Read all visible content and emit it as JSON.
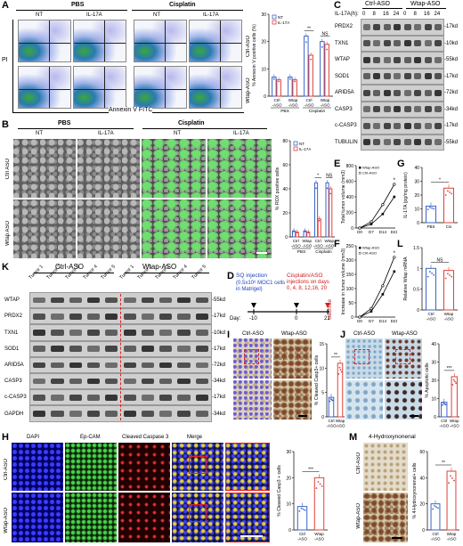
{
  "panel_letters": {
    "A": "A",
    "B": "B",
    "C": "C",
    "D": "D",
    "E": "E",
    "F": "F",
    "G": "G",
    "H": "H",
    "I": "I",
    "J": "J",
    "K": "K",
    "L": "L",
    "M": "M"
  },
  "panelA": {
    "treatments": [
      "PBS",
      "Cisplatin"
    ],
    "conditions": [
      "NT",
      "IL-17A",
      "NT",
      "IL-17A"
    ],
    "row_labels": [
      "Ctrl-ASO",
      "Wtap-ASO"
    ],
    "y_axis": "PI",
    "x_axis": "Annexin V FITC"
  },
  "panelB": {
    "treatments": [
      "PBS",
      "Cisplatin"
    ],
    "conditions": [
      "NT",
      "IL-17A",
      "NT",
      "IL-17A"
    ],
    "row_labels": [
      "Ctrl ASO",
      "Wtap ASO"
    ]
  },
  "panelC": {
    "groups": [
      "Ctrl-ASO",
      "Wtap-ASO"
    ],
    "time_header": "IL-17A(h):",
    "timepoints": [
      "0",
      "8",
      "16",
      "24",
      "0",
      "8",
      "16",
      "24"
    ],
    "proteins": [
      "PRDX2",
      "TXN1",
      "WTAP",
      "SOD1",
      "ARID5A",
      "CASP3",
      "c-CASP3",
      "TUBULIN"
    ],
    "sizes": [
      "-17kd",
      "-10kd",
      "-55kd",
      "-17kd",
      "-72kd",
      "-34kd",
      "-17kd",
      "-55kd"
    ]
  },
  "panelD": {
    "step1": "SQ injection",
    "step1_detail1": "(0.5x10⁶ MOC1 cells",
    "step1_detail2": "in Matrigel)",
    "step2": "Cisplatin/ASO",
    "step2_detail1": "injections on days",
    "step2_detail2": "0, 4, 8, 12,16, 20",
    "step3": "Sacrifice",
    "day_label": "Day:",
    "days": [
      "-10",
      "0",
      "21"
    ]
  },
  "panelK": {
    "groups": [
      "Ctrl-ASO",
      "Wtap-ASO"
    ],
    "tumors": [
      "Tumor 1",
      "Tumor 2",
      "Tumor 3",
      "Tumor 4",
      "Tumor 5",
      "Tumor 1",
      "Tumor 2",
      "Tumor 3",
      "Tumor 4",
      "Tumor 5"
    ],
    "proteins": [
      "WTAP",
      "PRDX2",
      "TXN1",
      "SOD1",
      "ARID5A",
      "CASP3",
      "c-CASP3",
      "GAPDH"
    ],
    "sizes": [
      "-55kd",
      "-17kd",
      "-10kd",
      "-17kd",
      "-72kd",
      "-34kd",
      "-17kd",
      "-34kd"
    ]
  },
  "panelH": {
    "channels": [
      "DAPI",
      "Ep-CAM",
      "Cleaved Caspase 3",
      "Merge"
    ],
    "row_labels": [
      "Ctrl-ASO",
      "Wtap-ASO"
    ]
  },
  "panelI": {
    "col_labels": [
      "Ctrl-ASO",
      "Wtap-ASO"
    ]
  },
  "panelJ": {
    "col_labels": [
      "Ctrl-ASO",
      "Wtap-ASO"
    ]
  },
  "panelM": {
    "title": "4-Hydroxynonenal",
    "row_labels": [
      "Ctrl-ASO",
      "Wtap-ASO"
    ]
  },
  "colors": {
    "nt": "#3a64c8",
    "il17": "#e0403a",
    "black": "#000000"
  },
  "chart_data": [
    {
      "id": "A",
      "type": "bar",
      "ylabel": "% Annexin V positive cells (%)",
      "ylim": [
        0,
        30
      ],
      "yticks": [
        0,
        10,
        20,
        30
      ],
      "categories": [
        "Ctrl-ASO",
        "Wtap-ASO",
        "Ctrl-ASO",
        "Wtap-ASO"
      ],
      "tick_labels": [
        "Ctrl\n-ASO",
        "Wtap\n-ASO",
        "Ctrl\n-ASO",
        "Wtap\n-ASO"
      ],
      "group_labels": [
        "PBS",
        "Cisplatin"
      ],
      "legend": [
        "NT",
        "IL-17A"
      ],
      "series": [
        {
          "name": "NT",
          "values": [
            7,
            7,
            22,
            20
          ]
        },
        {
          "name": "IL-17A",
          "values": [
            6,
            6,
            15,
            19
          ]
        }
      ],
      "annotations": [
        "**",
        "NS"
      ]
    },
    {
      "id": "B",
      "type": "bar",
      "ylabel": "% ROX positive cells",
      "ylim": [
        0,
        80
      ],
      "yticks": [
        0,
        20,
        40,
        60,
        80
      ],
      "categories": [
        "Ctrl-ASO",
        "Wtap-ASO",
        "Ctrl-ASO",
        "Wtap-ASO"
      ],
      "tick_labels": [
        "Ctrl\n-ASO",
        "Wtap\n-ASO",
        "Ctrl\n-ASO",
        "Wtap\n-ASO"
      ],
      "group_labels": [
        "PBS",
        "Cisplatin"
      ],
      "legend": [
        "NT",
        "IL-17A"
      ],
      "series": [
        {
          "name": "NT",
          "values": [
            5,
            5,
            45,
            45
          ]
        },
        {
          "name": "IL-17A",
          "values": [
            4,
            4,
            15,
            40
          ]
        }
      ],
      "annotations": [
        "*",
        "NS"
      ]
    },
    {
      "id": "E",
      "type": "line",
      "ylabel": "Total tumor volume (mm3)",
      "ylim": [
        0,
        800
      ],
      "yticks": [
        0,
        200,
        400,
        600,
        800
      ],
      "x": [
        "D0",
        "D7",
        "D14",
        "D21"
      ],
      "legend": [
        "Wtap-ASO",
        "Ctrl-ASO"
      ],
      "series": [
        {
          "name": "Wtap-ASO",
          "values": [
            0,
            50,
            180,
            400
          ]
        },
        {
          "name": "Ctrl-ASO",
          "values": [
            0,
            80,
            300,
            560
          ]
        }
      ],
      "annotations": [
        "*"
      ]
    },
    {
      "id": "F",
      "type": "line",
      "ylabel": "Increase in tumor volume (mm3)",
      "ylim": [
        0,
        250
      ],
      "yticks": [
        0,
        50,
        100,
        150,
        200,
        250
      ],
      "x": [
        "D0",
        "D7",
        "D14",
        "D21"
      ],
      "legend": [
        "Wtap-ASO",
        "Ctrl-ASO"
      ],
      "series": [
        {
          "name": "Wtap-ASO",
          "values": [
            0,
            20,
            80,
            160
          ]
        },
        {
          "name": "Ctrl-ASO",
          "values": [
            0,
            30,
            110,
            210
          ]
        }
      ],
      "annotations": [
        "*"
      ]
    },
    {
      "id": "G",
      "type": "bar",
      "ylabel": "IL-17A (pg/mg protein)",
      "ylim": [
        0,
        40
      ],
      "yticks": [
        0,
        10,
        20,
        30,
        40
      ],
      "categories": [
        "PBS",
        "Cis"
      ],
      "values": [
        12,
        25
      ],
      "annotations": [
        "*"
      ]
    },
    {
      "id": "L",
      "type": "bar",
      "ylabel": "Relative Wtap mRNA",
      "ylim": [
        0,
        1.5
      ],
      "yticks": [
        0,
        0.5,
        1.0,
        1.5
      ],
      "categories": [
        "Ctrl ASO",
        "Wtap ASO"
      ],
      "tick_labels": [
        "Ctrl\n-ASO",
        "Wtap\n-ASO"
      ],
      "values": [
        1.0,
        0.95
      ],
      "annotations": [
        "NS"
      ]
    },
    {
      "id": "I",
      "type": "bar",
      "ylabel": "% Cleaved Casp3+ cells",
      "ylim": [
        0,
        15
      ],
      "yticks": [
        0,
        5,
        10,
        15
      ],
      "categories": [
        "Ctrl-ASO",
        "Wtap-ASO"
      ],
      "tick_labels": [
        "Ctrl\n-ASO",
        "Wtap\n-ASO"
      ],
      "values": [
        4,
        11
      ],
      "annotations": [
        "**"
      ]
    },
    {
      "id": "J",
      "type": "bar",
      "ylabel": "% Apoptotic cells",
      "ylim": [
        0,
        40
      ],
      "yticks": [
        0,
        10,
        20,
        30,
        40
      ],
      "categories": [
        "Ctrl-ASO",
        "Wtap-ASO"
      ],
      "tick_labels": [
        "Ctrl\n-ASO",
        "Wtap\n-ASO"
      ],
      "values": [
        8,
        22
      ],
      "annotations": [
        "***"
      ]
    },
    {
      "id": "H",
      "type": "bar",
      "ylabel": "% Cleaved Casp3 + cells",
      "ylim": [
        0,
        30
      ],
      "yticks": [
        0,
        10,
        20,
        30
      ],
      "categories": [
        "Ctrl-ASO",
        "Wtap-ASO"
      ],
      "tick_labels": [
        "Ctrl\n-ASO",
        "Wtap\n-ASO"
      ],
      "values": [
        9,
        20
      ],
      "annotations": [
        "***"
      ]
    },
    {
      "id": "M",
      "type": "bar",
      "ylabel": "% 4-Hydroxynonenal+ cells",
      "ylim": [
        0,
        60
      ],
      "yticks": [
        0,
        20,
        40,
        60
      ],
      "categories": [
        "Ctrl-ASO",
        "Wtap-ASO"
      ],
      "tick_labels": [
        "Ctrl\n-ASO",
        "Wtap\n-ASO"
      ],
      "values": [
        20,
        45
      ],
      "annotations": [
        "**"
      ]
    }
  ]
}
